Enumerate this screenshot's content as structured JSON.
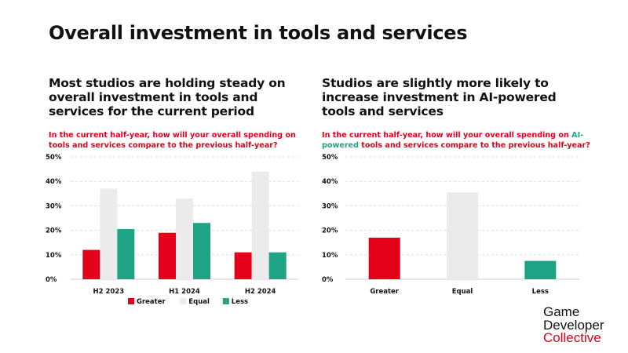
{
  "page": {
    "title": "Overall investment in tools and services",
    "left_heading": "Most studios are holding steady on overall investment in tools and services for the current period",
    "left_question": "In the current half-year, how will your overall spending on tools and services compare to the previous half-year?",
    "right_heading": "Studios are slightly more likely to increase investment in AI-powered tools and services",
    "right_question_part1": "In the current half-year, how will your overall spending on ",
    "right_question_highlight": "AI-powered",
    "right_question_part2": " tools and services compare to the previous half-year?"
  },
  "brand": {
    "line1": "Game",
    "line2": "Developer",
    "line3": "Collective"
  },
  "colors": {
    "greater": "#e2001a",
    "equal": "#ebebeb",
    "less": "#1fa385",
    "axis": "#cccccc",
    "grid": "#dddddd",
    "text": "#111111"
  },
  "chart_data": [
    {
      "type": "bar",
      "title": "",
      "categories": [
        "H2 2023",
        "H1 2024",
        "H2 2024"
      ],
      "series": [
        {
          "name": "Greater",
          "values": [
            12,
            19,
            11
          ]
        },
        {
          "name": "Equal",
          "values": [
            37,
            33,
            44
          ]
        },
        {
          "name": "Less",
          "values": [
            20.5,
            23,
            11
          ]
        }
      ],
      "ylim": [
        0,
        50
      ],
      "yticks": [
        "0%",
        "10%",
        "20%",
        "30%",
        "40%",
        "50%"
      ],
      "grid": true,
      "legend": "bottom"
    },
    {
      "type": "bar",
      "title": "",
      "categories": [
        "Greater",
        "Equal",
        "Less"
      ],
      "values": [
        17,
        35.5,
        7.5
      ],
      "ylim": [
        0,
        50
      ],
      "yticks": [
        "0%",
        "10%",
        "20%",
        "30%",
        "40%",
        "50%"
      ],
      "grid": true,
      "legend": "none"
    }
  ]
}
